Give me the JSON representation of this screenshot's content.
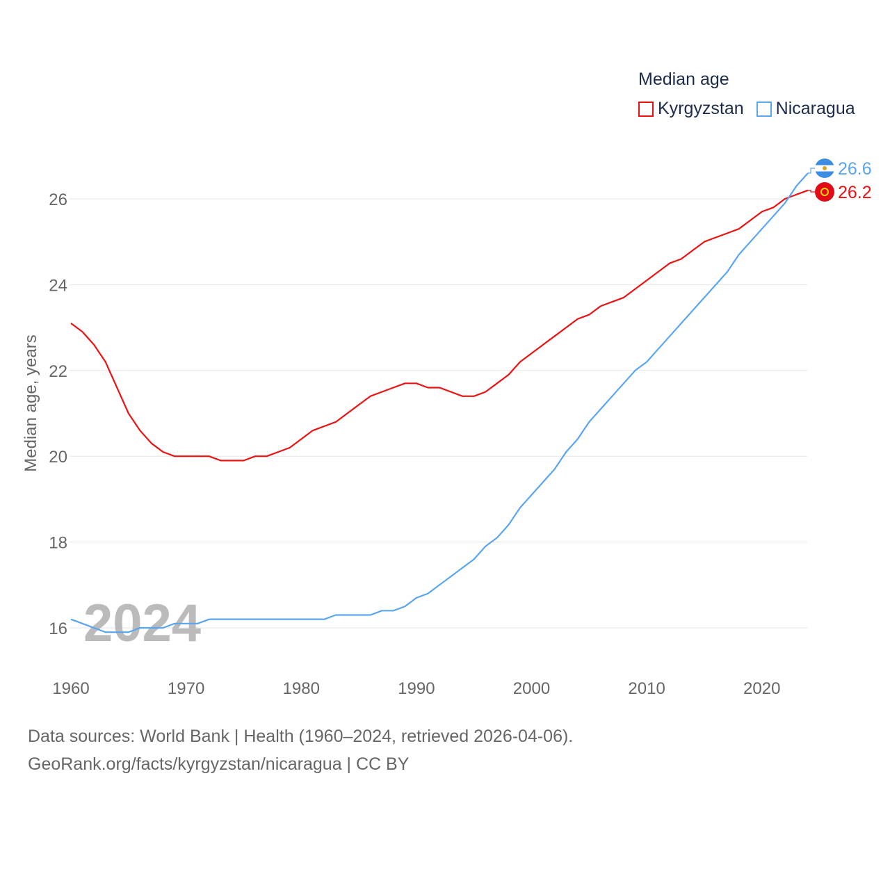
{
  "chart_data": {
    "type": "line",
    "title": "Median age",
    "ylabel": "Median age, years",
    "xlabel": "",
    "xlim": [
      1960,
      2024
    ],
    "ylim": [
      15,
      27
    ],
    "x_ticks": [
      1960,
      1970,
      1980,
      1990,
      2000,
      2010,
      2020
    ],
    "y_ticks": [
      16,
      18,
      20,
      22,
      24,
      26
    ],
    "grid": true,
    "legend_position": "top-right",
    "year_label": "2024",
    "x": [
      1960,
      1961,
      1962,
      1963,
      1964,
      1965,
      1966,
      1967,
      1968,
      1969,
      1970,
      1971,
      1972,
      1973,
      1974,
      1975,
      1976,
      1977,
      1978,
      1979,
      1980,
      1981,
      1982,
      1983,
      1984,
      1985,
      1986,
      1987,
      1988,
      1989,
      1990,
      1991,
      1992,
      1993,
      1994,
      1995,
      1996,
      1997,
      1998,
      1999,
      2000,
      2001,
      2002,
      2003,
      2004,
      2005,
      2006,
      2007,
      2008,
      2009,
      2010,
      2011,
      2012,
      2013,
      2014,
      2015,
      2016,
      2017,
      2018,
      2019,
      2020,
      2021,
      2022,
      2023,
      2024
    ],
    "series": [
      {
        "name": "Kyrgyzstan",
        "color": "#ee1111",
        "end_label": "26.2",
        "values": [
          23.1,
          22.9,
          22.6,
          22.2,
          21.6,
          21.0,
          20.6,
          20.3,
          20.1,
          20.0,
          20.0,
          20.0,
          20.0,
          19.9,
          19.9,
          19.9,
          20.0,
          20.0,
          20.1,
          20.2,
          20.4,
          20.6,
          20.7,
          20.8,
          21.0,
          21.2,
          21.4,
          21.5,
          21.6,
          21.7,
          21.7,
          21.6,
          21.6,
          21.5,
          21.4,
          21.4,
          21.5,
          21.7,
          21.9,
          22.2,
          22.4,
          22.6,
          22.8,
          23.0,
          23.2,
          23.3,
          23.5,
          23.6,
          23.7,
          23.9,
          24.1,
          24.3,
          24.5,
          24.6,
          24.8,
          25.0,
          25.1,
          25.2,
          25.3,
          25.5,
          25.7,
          25.8,
          26.0,
          26.1,
          26.2
        ]
      },
      {
        "name": "Nicaragua",
        "color": "#5aa5ef",
        "end_label": "26.6",
        "values": [
          16.2,
          16.1,
          16.0,
          15.9,
          15.9,
          15.9,
          16.0,
          16.0,
          16.0,
          16.1,
          16.1,
          16.1,
          16.2,
          16.2,
          16.2,
          16.2,
          16.2,
          16.2,
          16.2,
          16.2,
          16.2,
          16.2,
          16.2,
          16.3,
          16.3,
          16.3,
          16.3,
          16.4,
          16.4,
          16.5,
          16.7,
          16.8,
          17.0,
          17.2,
          17.4,
          17.6,
          17.9,
          18.1,
          18.4,
          18.8,
          19.1,
          19.4,
          19.7,
          20.1,
          20.4,
          20.8,
          21.1,
          21.4,
          21.7,
          22.0,
          22.2,
          22.5,
          22.8,
          23.1,
          23.4,
          23.7,
          24.0,
          24.3,
          24.7,
          25.0,
          25.3,
          25.6,
          25.9,
          26.3,
          26.6
        ]
      }
    ]
  },
  "footer": {
    "line1": "Data sources: World Bank | Health (1960–2024, retrieved 2026-04-06).",
    "line2": "GeoRank.org/facts/kyrgyzstan/nicaragua | CC BY"
  }
}
